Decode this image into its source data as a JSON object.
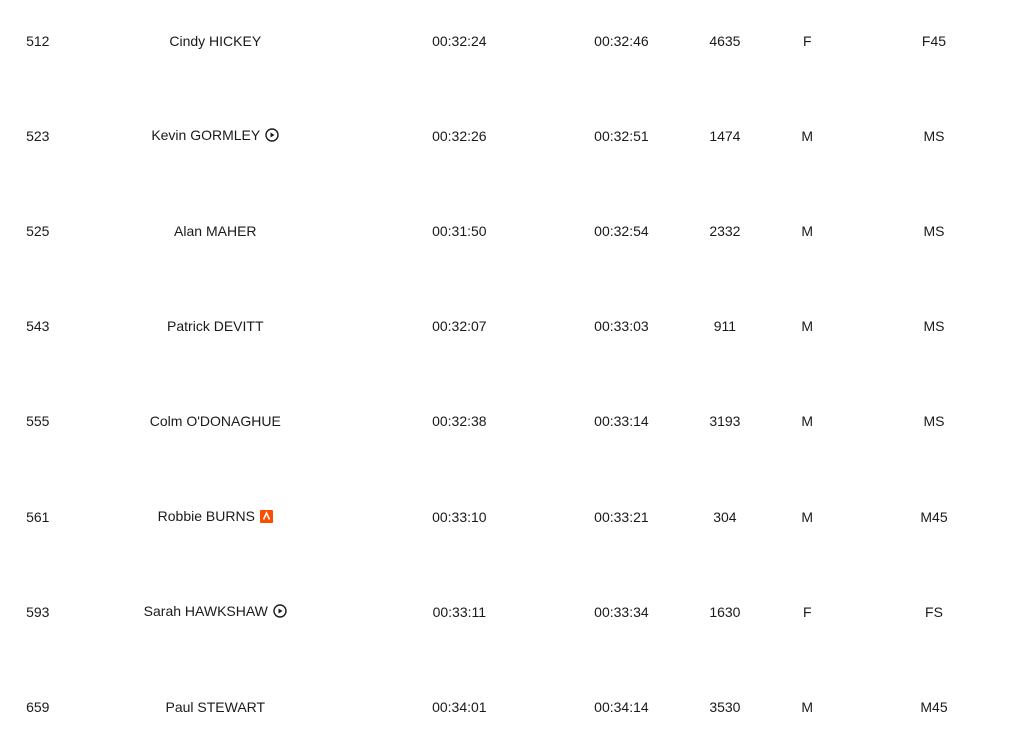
{
  "accent_strava": "#fc4c02",
  "rows": [
    {
      "pos": "512",
      "name": "Cindy HICKEY",
      "icon": null,
      "chip": "00:32:24",
      "gun": "00:32:46",
      "bib": "4635",
      "gender": "F",
      "cat": "F45"
    },
    {
      "pos": "523",
      "name": "Kevin GORMLEY",
      "icon": "play-circle-icon",
      "chip": "00:32:26",
      "gun": "00:32:51",
      "bib": "1474",
      "gender": "M",
      "cat": "MS"
    },
    {
      "pos": "525",
      "name": "Alan MAHER",
      "icon": null,
      "chip": "00:31:50",
      "gun": "00:32:54",
      "bib": "2332",
      "gender": "M",
      "cat": "MS"
    },
    {
      "pos": "543",
      "name": "Patrick DEVITT",
      "icon": null,
      "chip": "00:32:07",
      "gun": "00:33:03",
      "bib": "911",
      "gender": "M",
      "cat": "MS"
    },
    {
      "pos": "555",
      "name": "Colm O'DONAGHUE",
      "icon": null,
      "chip": "00:32:38",
      "gun": "00:33:14",
      "bib": "3193",
      "gender": "M",
      "cat": "MS"
    },
    {
      "pos": "561",
      "name": "Robbie BURNS",
      "icon": "strava-icon",
      "chip": "00:33:10",
      "gun": "00:33:21",
      "bib": "304",
      "gender": "M",
      "cat": "M45"
    },
    {
      "pos": "593",
      "name": "Sarah HAWKSHAW",
      "icon": "play-circle-icon",
      "chip": "00:33:11",
      "gun": "00:33:34",
      "bib": "1630",
      "gender": "F",
      "cat": "FS"
    },
    {
      "pos": "659",
      "name": "Paul STEWART",
      "icon": null,
      "chip": "00:34:01",
      "gun": "00:34:14",
      "bib": "3530",
      "gender": "M",
      "cat": "M45"
    }
  ]
}
